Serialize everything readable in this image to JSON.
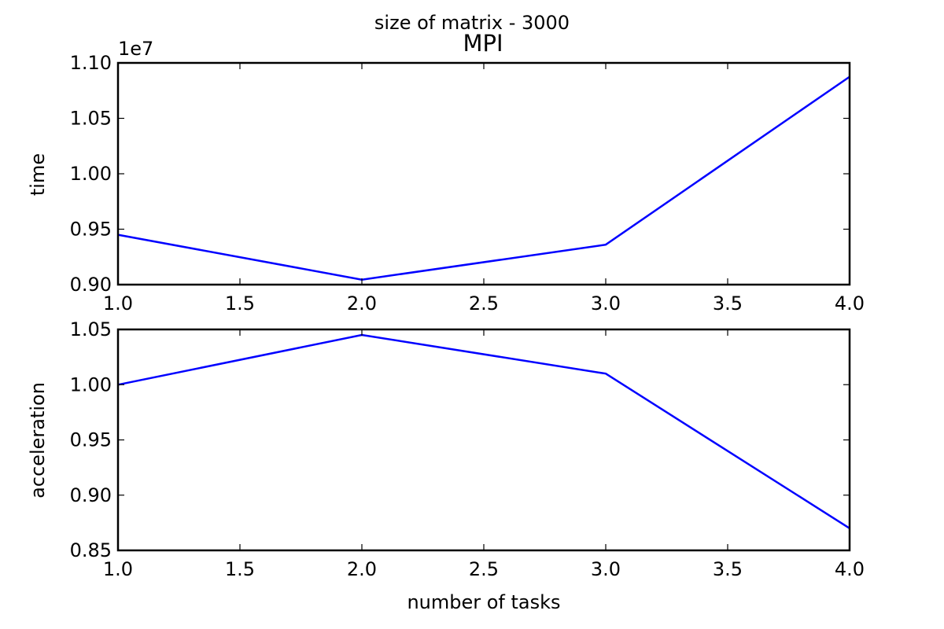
{
  "figure": {
    "suptitle": "size of matrix - 3000"
  },
  "chart_data": [
    {
      "type": "line",
      "title": "MPI",
      "xlabel": "",
      "ylabel": "time",
      "offset_text": "1e7",
      "xlim": [
        1.0,
        4.0
      ],
      "ylim": [
        0.9,
        1.1
      ],
      "grid": false,
      "x_ticks": [
        "1.0",
        "1.5",
        "2.0",
        "2.5",
        "3.0",
        "3.5",
        "4.0"
      ],
      "y_ticks": [
        "0.90",
        "0.95",
        "1.00",
        "1.05",
        "1.10"
      ],
      "series": [
        {
          "x": [
            1.0,
            2.0,
            3.0,
            4.0
          ],
          "values": [
            0.945,
            0.9045,
            0.936,
            1.0875
          ],
          "color": "#0000ff"
        }
      ]
    },
    {
      "type": "line",
      "title": "",
      "xlabel": "number of tasks",
      "ylabel": "acceleration",
      "xlim": [
        1.0,
        4.0
      ],
      "ylim": [
        0.85,
        1.05
      ],
      "grid": false,
      "x_ticks": [
        "1.0",
        "1.5",
        "2.0",
        "2.5",
        "3.0",
        "3.5",
        "4.0"
      ],
      "y_ticks": [
        "0.85",
        "0.90",
        "0.95",
        "1.00",
        "1.05"
      ],
      "series": [
        {
          "x": [
            1.0,
            2.0,
            3.0,
            4.0
          ],
          "values": [
            1.0,
            1.045,
            1.01,
            0.87
          ],
          "color": "#0000ff"
        }
      ]
    }
  ]
}
